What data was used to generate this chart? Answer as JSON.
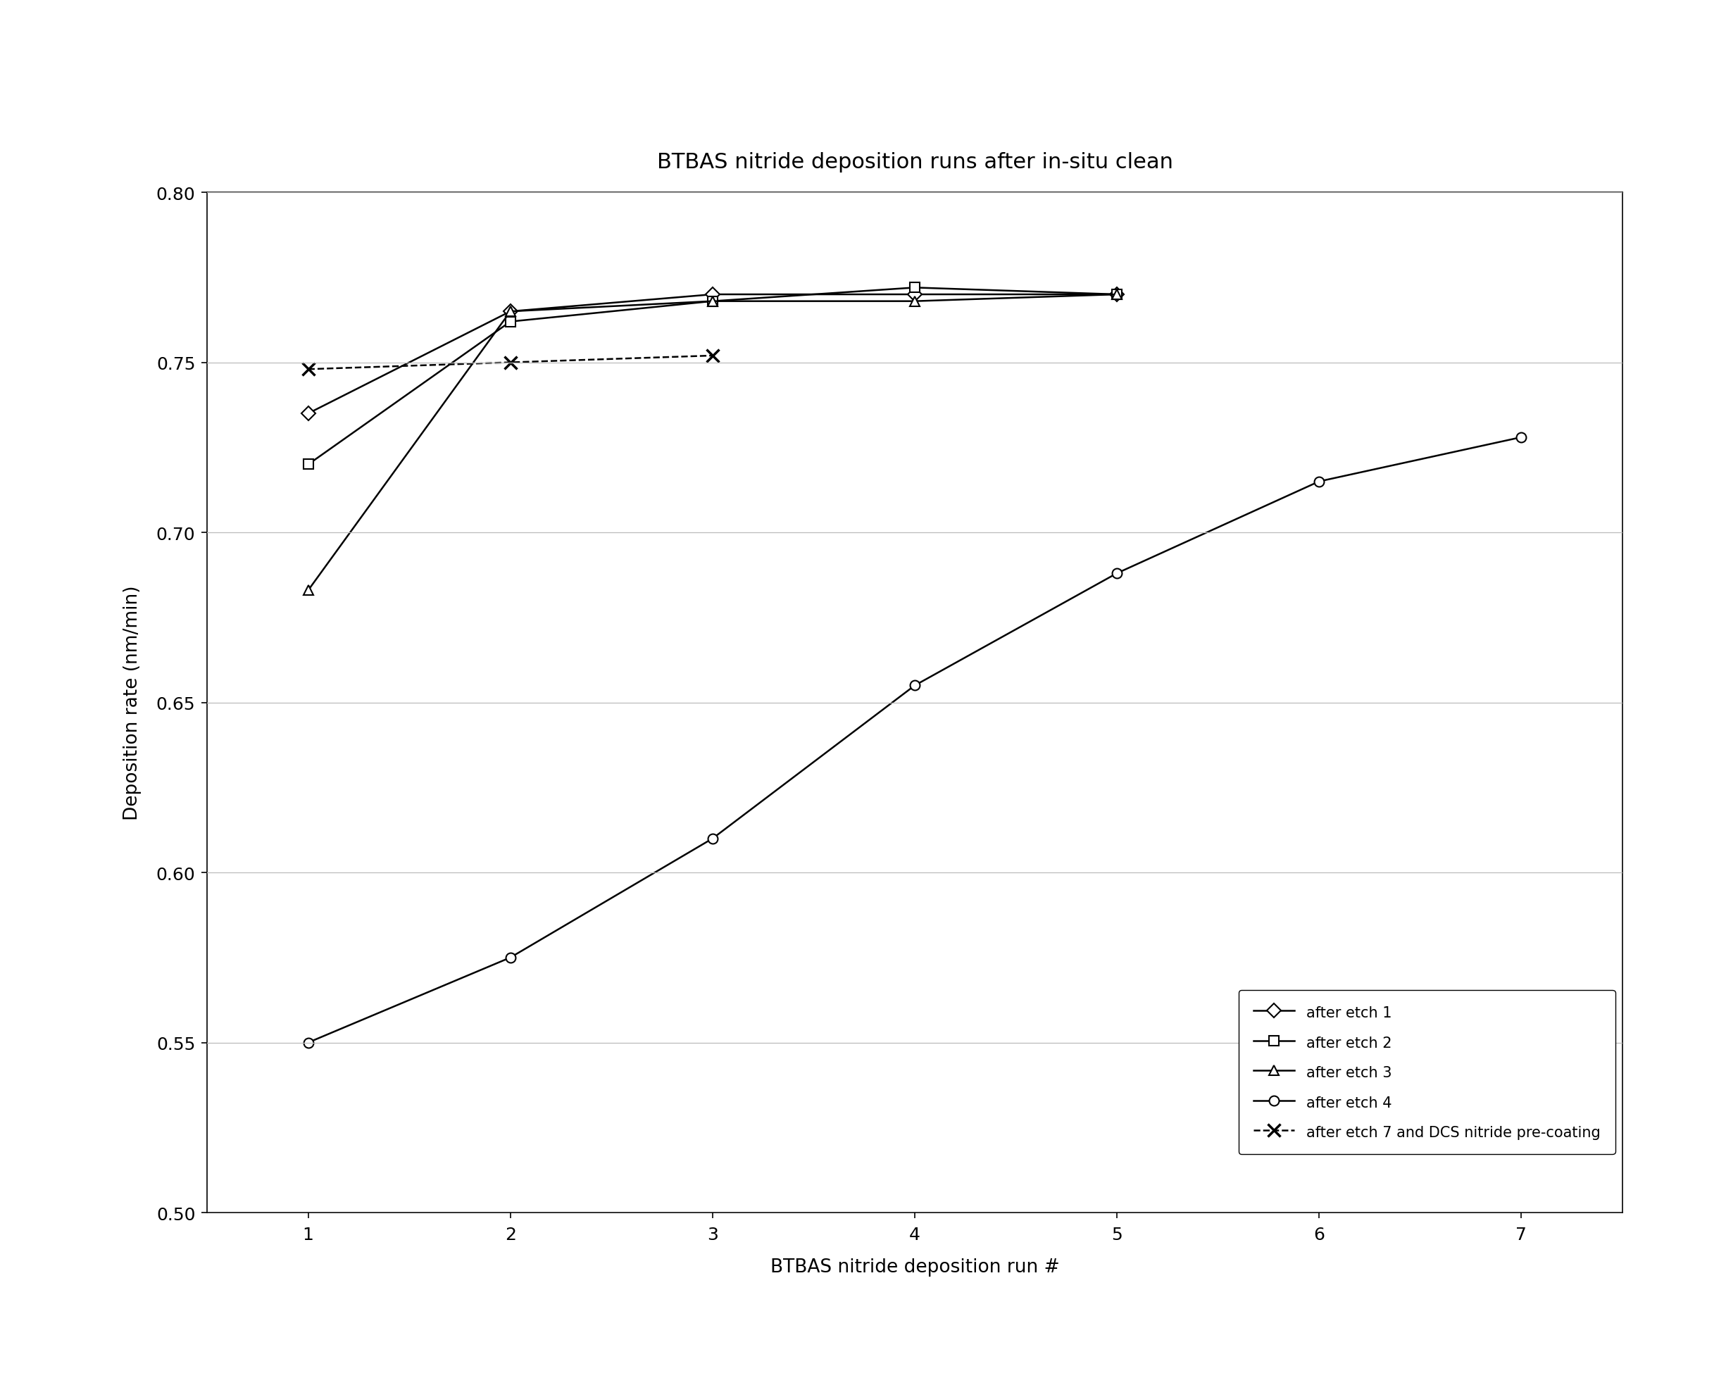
{
  "title": "BTBAS nitride deposition runs after in-situ clean",
  "xlabel": "BTBAS nitride deposition run #",
  "ylabel": "Deposition rate (nm/min)",
  "xlim": [
    0.5,
    7.5
  ],
  "ylim": [
    0.5,
    0.8
  ],
  "xticks": [
    1,
    2,
    3,
    4,
    5,
    6,
    7
  ],
  "yticks": [
    0.5,
    0.55,
    0.6,
    0.65,
    0.7,
    0.75,
    0.8
  ],
  "series": [
    {
      "label": "after etch 1",
      "x": [
        1,
        2,
        3,
        4,
        5
      ],
      "y": [
        0.735,
        0.765,
        0.77,
        0.77,
        0.77
      ],
      "marker": "D",
      "markersize": 10,
      "color": "#000000",
      "linewidth": 1.8,
      "linestyle": "-"
    },
    {
      "label": "after etch 2",
      "x": [
        1,
        2,
        3,
        4,
        5
      ],
      "y": [
        0.72,
        0.762,
        0.768,
        0.772,
        0.77
      ],
      "marker": "s",
      "markersize": 10,
      "color": "#000000",
      "linewidth": 1.8,
      "linestyle": "-"
    },
    {
      "label": "after etch 3",
      "x": [
        1,
        2,
        3,
        4,
        5
      ],
      "y": [
        0.683,
        0.765,
        0.768,
        0.768,
        0.77
      ],
      "marker": "^",
      "markersize": 10,
      "color": "#000000",
      "linewidth": 1.8,
      "linestyle": "-"
    },
    {
      "label": "after etch 4",
      "x": [
        1,
        2,
        3,
        4,
        5,
        6,
        7
      ],
      "y": [
        0.55,
        0.575,
        0.61,
        0.655,
        0.688,
        0.715,
        0.728
      ],
      "marker": "o",
      "markersize": 10,
      "color": "#000000",
      "linewidth": 1.8,
      "linestyle": "-"
    },
    {
      "label": "after etch 7 and DCS nitride pre-coating",
      "x": [
        1,
        2,
        3
      ],
      "y": [
        0.748,
        0.75,
        0.752
      ],
      "marker": "x",
      "markersize": 13,
      "color": "#000000",
      "linewidth": 1.8,
      "linestyle": "--"
    }
  ],
  "background_color": "#ffffff",
  "grid_color": "#bbbbbb",
  "title_fontsize": 22,
  "label_fontsize": 19,
  "tick_fontsize": 18,
  "legend_fontsize": 15
}
